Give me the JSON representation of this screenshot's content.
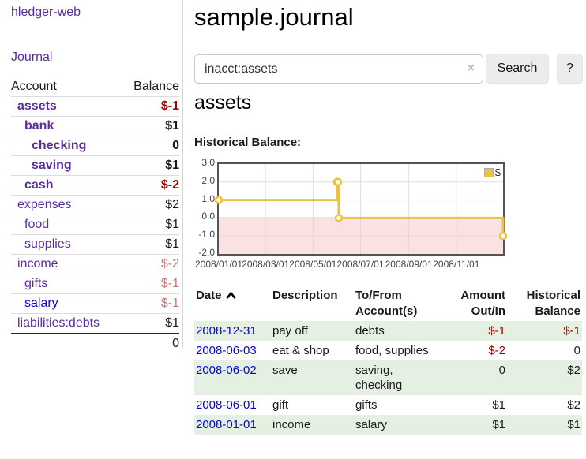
{
  "sidebar": {
    "app_title": "hledger-web",
    "journal_link": "Journal",
    "table": {
      "account_header": "Account",
      "balance_header": "Balance",
      "total": "0"
    },
    "accounts": [
      {
        "label": "assets",
        "indent": 1,
        "bold": true,
        "balance": "$-1",
        "balance_style": "neg",
        "link_style": "purple"
      },
      {
        "label": "bank",
        "indent": 2,
        "bold": true,
        "balance": "$1",
        "balance_style": "pos",
        "link_style": "purple"
      },
      {
        "label": "checking",
        "indent": 3,
        "bold": true,
        "balance": "0",
        "balance_style": "pos",
        "link_style": "purple"
      },
      {
        "label": "saving",
        "indent": 3,
        "bold": true,
        "balance": "$1",
        "balance_style": "pos",
        "link_style": "purple"
      },
      {
        "label": "cash",
        "indent": 2,
        "bold": true,
        "balance": "$-2",
        "balance_style": "neg",
        "link_style": "purple"
      },
      {
        "label": "expenses",
        "indent": 1,
        "bold": false,
        "balance": "$2",
        "balance_style": "pos",
        "link_style": "purple"
      },
      {
        "label": "food",
        "indent": 2,
        "bold": false,
        "balance": "$1",
        "balance_style": "pos",
        "link_style": "purple"
      },
      {
        "label": "supplies",
        "indent": 2,
        "bold": false,
        "balance": "$1",
        "balance_style": "pos",
        "link_style": "purple"
      },
      {
        "label": "income",
        "indent": 1,
        "bold": false,
        "balance": "$-2",
        "balance_style": "neg-faded",
        "link_style": "purple"
      },
      {
        "label": "gifts",
        "indent": 2,
        "bold": false,
        "balance": "$-1",
        "balance_style": "neg-faded",
        "link_style": "purple"
      },
      {
        "label": "salary",
        "indent": 2,
        "bold": false,
        "balance": "$-1",
        "balance_style": "neg-faded",
        "link_style": "blue"
      },
      {
        "label": "liabilities:debts",
        "indent": 1,
        "bold": false,
        "balance": "$1",
        "balance_style": "pos",
        "link_style": "purple"
      }
    ]
  },
  "main": {
    "title": "sample.journal",
    "search": {
      "value": "inacct:assets",
      "placeholder": "",
      "button_label": "Search",
      "help_label": "?"
    },
    "account_heading": "assets",
    "chart_label": "Historical Balance:"
  },
  "icons": {
    "clear_search": "×",
    "sort_ascending": "∧"
  },
  "chart_data": {
    "type": "line",
    "title": "Historical Balance:",
    "step": true,
    "x_domain": [
      "2008-01-01",
      "2008-12-31"
    ],
    "ylim": [
      -2,
      3
    ],
    "y_ticks": [
      "3.0",
      "2.0",
      "1.0",
      "0.0",
      "-1.0",
      "-2.0"
    ],
    "x_ticks": [
      {
        "date": "2008-01-01",
        "label": "2008/01/01"
      },
      {
        "date": "2008-03-01",
        "label": "2008/03/01"
      },
      {
        "date": "2008-05-01",
        "label": "2008/05/01"
      },
      {
        "date": "2008-07-01",
        "label": "2008/07/01"
      },
      {
        "date": "2008-09-01",
        "label": "2008/09/01"
      },
      {
        "date": "2008-11-01",
        "label": "2008/11/01"
      }
    ],
    "series": [
      {
        "name": "$",
        "color": "#edc240",
        "points": [
          {
            "date": "2008-01-01",
            "value": 1
          },
          {
            "date": "2008-06-01",
            "value": 2
          },
          {
            "date": "2008-06-02",
            "value": 2
          },
          {
            "date": "2008-06-03",
            "value": 0
          },
          {
            "date": "2008-12-31",
            "value": -1
          }
        ]
      }
    ],
    "legend_position": "top-right",
    "grid": true,
    "negative_region_color": "#f6caca",
    "zero_line_color": "#8c1717"
  },
  "register": {
    "columns": [
      "Date",
      "Description",
      "To/From Account(s)",
      "Amount Out/In",
      "Historical Balance"
    ],
    "rows": [
      {
        "date": "2008-12-31",
        "description": "pay off",
        "accounts": "debts",
        "amount": "$-1",
        "amount_neg": true,
        "balance": "$-1",
        "balance_neg": true
      },
      {
        "date": "2008-06-03",
        "description": "eat & shop",
        "accounts": "food, supplies",
        "amount": "$-2",
        "amount_neg": true,
        "balance": "0",
        "balance_neg": false
      },
      {
        "date": "2008-06-02",
        "description": "save",
        "accounts": "saving, checking",
        "amount": "0",
        "amount_neg": false,
        "balance": "$2",
        "balance_neg": false
      },
      {
        "date": "2008-06-01",
        "description": "gift",
        "accounts": "gifts",
        "amount": "$1",
        "amount_neg": false,
        "balance": "$2",
        "balance_neg": false
      },
      {
        "date": "2008-01-01",
        "description": "income",
        "accounts": "salary",
        "amount": "$1",
        "amount_neg": false,
        "balance": "$1",
        "balance_neg": false
      }
    ]
  }
}
